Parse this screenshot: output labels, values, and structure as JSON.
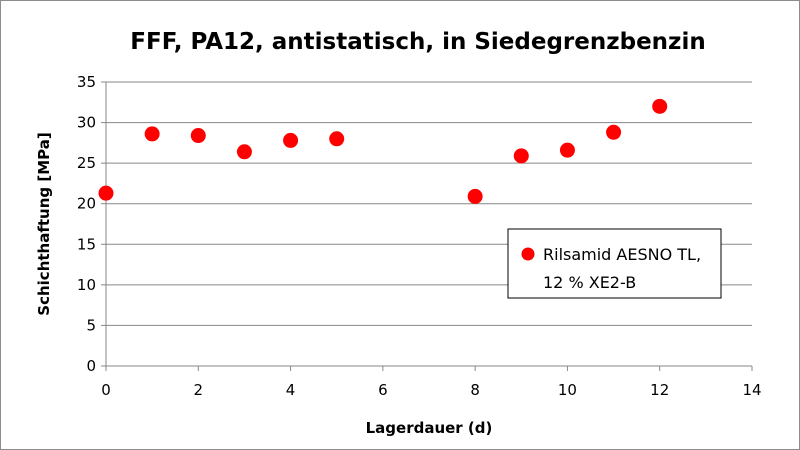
{
  "chart_data": {
    "type": "scatter",
    "title": "FFF, PA12, antistatisch, in Siedegrenzbenzin",
    "xlabel": "Lagerdauer (d)",
    "ylabel": "Schichthaftung [MPa]",
    "xlim": [
      0,
      14
    ],
    "ylim": [
      0,
      35
    ],
    "x_ticks": [
      0,
      2,
      4,
      6,
      8,
      10,
      12,
      14
    ],
    "y_ticks": [
      0,
      5,
      10,
      15,
      20,
      25,
      30,
      35
    ],
    "grid": "horizontal",
    "legend_position": "right",
    "series": [
      {
        "name_lines": [
          "Rilsamid AESNO TL,",
          "12 % XE2-B"
        ],
        "color": "#ff0000",
        "points": [
          {
            "x": 0,
            "y": 21.3
          },
          {
            "x": 1,
            "y": 28.6
          },
          {
            "x": 2,
            "y": 28.4
          },
          {
            "x": 3,
            "y": 26.4
          },
          {
            "x": 4,
            "y": 27.8
          },
          {
            "x": 5,
            "y": 28.0
          },
          {
            "x": 8,
            "y": 20.9
          },
          {
            "x": 9,
            "y": 25.9
          },
          {
            "x": 10,
            "y": 26.6
          },
          {
            "x": 11,
            "y": 28.8
          },
          {
            "x": 12,
            "y": 32.0
          }
        ]
      }
    ]
  }
}
